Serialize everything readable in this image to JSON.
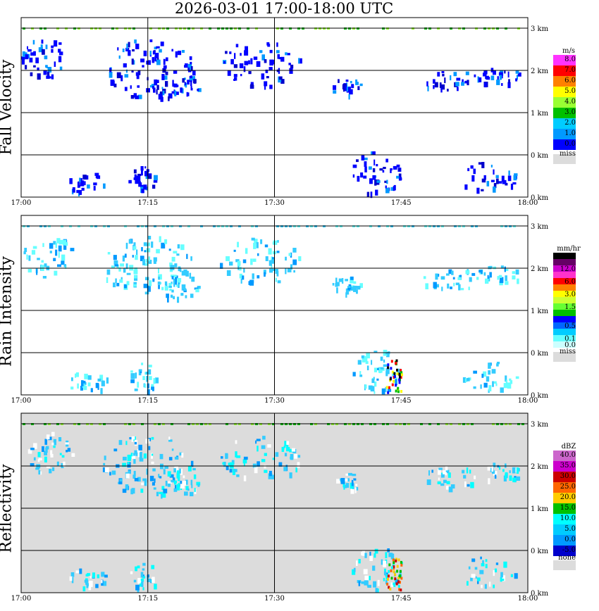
{
  "title": "2026-03-01   17:00-18:00 UTC",
  "chart_data": [
    {
      "type": "heatmap",
      "ylabel": "Fall Velocity",
      "xtick_labels": [
        "17:00",
        "17:15",
        "17:30",
        "17:45",
        "18:00"
      ],
      "height_labels": [
        "3 km",
        "2 km",
        "1 km",
        "0 km"
      ],
      "legend": {
        "unit": "m/s",
        "bins": [
          {
            "label": "8.0",
            "color": "#ff33ff"
          },
          {
            "label": "7.0",
            "color": "#ff0000"
          },
          {
            "label": "6.0",
            "color": "#ff8000"
          },
          {
            "label": "5.0",
            "color": "#ffff00"
          },
          {
            "label": "4.0",
            "color": "#99ff33"
          },
          {
            "label": "3.0",
            "color": "#00c000"
          },
          {
            "label": "2.0",
            "color": "#00ccff"
          },
          {
            "label": "1.0",
            "color": "#0099ff"
          },
          {
            "label": "0.0",
            "color": "#0000ff"
          }
        ],
        "missing": {
          "label": "miss",
          "color": "#dcdcdc"
        }
      },
      "background": "#ffffff",
      "echo_colors": [
        "#0000ff",
        "#0000ff",
        "#0000ff",
        "#0099ff",
        "#0000cc"
      ],
      "dots": [
        "#00c000",
        "#99ff33"
      ]
    },
    {
      "type": "heatmap",
      "ylabel": "Rain Intensity",
      "xtick_labels": [
        "17:00",
        "17:15",
        "17:30",
        "17:45",
        "18:00"
      ],
      "height_labels": [
        "3 km",
        "2 km",
        "1 km",
        "0 km"
      ],
      "legend": {
        "unit": "mm/hr",
        "bins": [
          {
            "label": "48.0",
            "color": "#000000"
          },
          {
            "label": "",
            "color": "#660066"
          },
          {
            "label": "12.0",
            "color": "#cc00cc"
          },
          {
            "label": "",
            "color": "#ff33cc"
          },
          {
            "label": "6.0",
            "color": "#ff0000"
          },
          {
            "label": "",
            "color": "#ff8000"
          },
          {
            "label": "3.0",
            "color": "#ffff00"
          },
          {
            "label": "",
            "color": "#ccff33"
          },
          {
            "label": "1.5",
            "color": "#66ff33"
          },
          {
            "label": "",
            "color": "#00c000"
          },
          {
            "label": "",
            "color": "#0000ff"
          },
          {
            "label": "0.5",
            "color": "#0066ff"
          },
          {
            "label": "",
            "color": "#00ccff"
          },
          {
            "label": "0.1",
            "color": "#66ffff"
          },
          {
            "label": "0.0",
            "color": "#ccffff"
          }
        ],
        "missing": {
          "label": "miss",
          "color": "#dcdcdc"
        }
      },
      "background": "#ffffff",
      "echo_colors": [
        "#66ffff",
        "#33ccff",
        "#0099ff",
        "#66ffff",
        "#33ccff"
      ],
      "dots": [
        "#33ccff",
        "#66ffff"
      ]
    },
    {
      "type": "heatmap",
      "ylabel": "Reflectivity",
      "xtick_labels": [
        "17:00",
        "17:15",
        "17:30",
        "17:45",
        "18:00"
      ],
      "height_labels": [
        "3 km",
        "2 km",
        "1 km",
        "0 km"
      ],
      "legend": {
        "unit": "dBZ",
        "bins": [
          {
            "label": "40.0",
            "color": "#cc66cc"
          },
          {
            "label": "35.0",
            "color": "#cc00cc"
          },
          {
            "label": "30.0",
            "color": "#cc0000"
          },
          {
            "label": "25.0",
            "color": "#ff6600"
          },
          {
            "label": "20.0",
            "color": "#ffcc00"
          },
          {
            "label": "15.0",
            "color": "#00c000"
          },
          {
            "label": "10.0",
            "color": "#00ffff"
          },
          {
            "label": "5.0",
            "color": "#00ccff"
          },
          {
            "label": "0.0",
            "color": "#0099ff"
          },
          {
            "label": "-5.0",
            "color": "#0000cc"
          }
        ],
        "missing": {
          "label": "none",
          "color": "#dcdcdc"
        }
      },
      "background": "#dcdcdc",
      "echo_colors": [
        "#33ccff",
        "#00ffff",
        "#33ccff",
        "#0099ff",
        "#ffffff"
      ],
      "dots": [
        "#00c000",
        "#99ff33"
      ]
    }
  ]
}
